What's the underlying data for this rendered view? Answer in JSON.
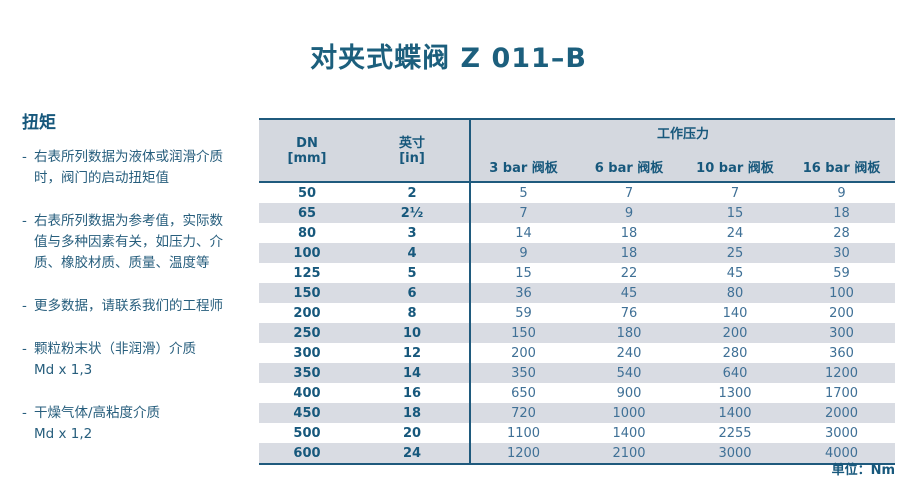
{
  "page": {
    "title": "对夹式蝶阀 Z 011–B"
  },
  "sidebar": {
    "heading": "扭矩",
    "marker": "-",
    "bullets": [
      {
        "text": "右表所列数据为液体或润滑介质时，阀门的启动扭矩值",
        "sub": ""
      },
      {
        "text": "右表所列数据为参考值，实际数值与多种因素有关，如压力、介质、橡胶材质、质量、温度等",
        "sub": ""
      },
      {
        "text": "更多数据，请联系我们的工程师",
        "sub": ""
      },
      {
        "text": "颗粒粉末状（非润滑）介质",
        "sub": "Md x 1,3"
      },
      {
        "text": "干燥气体/高粘度介质",
        "sub": "Md x 1,2"
      }
    ]
  },
  "table": {
    "header": {
      "dn": {
        "line1": "DN",
        "line2": "[mm]"
      },
      "inch": {
        "line1": "英寸",
        "line2": "[in]"
      },
      "pressure_group": "工作压力",
      "pressure_cols": [
        "3 bar 阀板",
        "6 bar 阀板",
        "10 bar 阀板",
        "16 bar 阀板"
      ]
    },
    "rows": [
      {
        "dn": "50",
        "inch": "2",
        "values": [
          "5",
          "7",
          "7",
          "9"
        ]
      },
      {
        "dn": "65",
        "inch": "2½",
        "values": [
          "7",
          "9",
          "15",
          "18"
        ]
      },
      {
        "dn": "80",
        "inch": "3",
        "values": [
          "14",
          "18",
          "24",
          "28"
        ]
      },
      {
        "dn": "100",
        "inch": "4",
        "values": [
          "9",
          "18",
          "25",
          "30"
        ]
      },
      {
        "dn": "125",
        "inch": "5",
        "values": [
          "15",
          "22",
          "45",
          "59"
        ]
      },
      {
        "dn": "150",
        "inch": "6",
        "values": [
          "36",
          "45",
          "80",
          "100"
        ]
      },
      {
        "dn": "200",
        "inch": "8",
        "values": [
          "59",
          "76",
          "140",
          "200"
        ]
      },
      {
        "dn": "250",
        "inch": "10",
        "values": [
          "150",
          "180",
          "200",
          "300"
        ]
      },
      {
        "dn": "300",
        "inch": "12",
        "values": [
          "200",
          "240",
          "280",
          "360"
        ]
      },
      {
        "dn": "350",
        "inch": "14",
        "values": [
          "350",
          "540",
          "640",
          "1200"
        ]
      },
      {
        "dn": "400",
        "inch": "16",
        "values": [
          "650",
          "900",
          "1300",
          "1700"
        ]
      },
      {
        "dn": "450",
        "inch": "18",
        "values": [
          "720",
          "1000",
          "1400",
          "2000"
        ]
      },
      {
        "dn": "500",
        "inch": "20",
        "values": [
          "1100",
          "1400",
          "2255",
          "3000"
        ]
      },
      {
        "dn": "600",
        "inch": "24",
        "values": [
          "1200",
          "2100",
          "3000",
          "4000"
        ]
      }
    ],
    "unit_note": "单位：Nm"
  },
  "colors": {
    "title_text": "#1c5f7d",
    "dark_text": "#17587c",
    "value_text": "#3f7096",
    "sidebar_text": "#275e7d",
    "border": "#1f5a7d",
    "header_bg": "#d4d8df",
    "stripe_bg": "#d9dce3",
    "page_bg": "#ffffff"
  }
}
